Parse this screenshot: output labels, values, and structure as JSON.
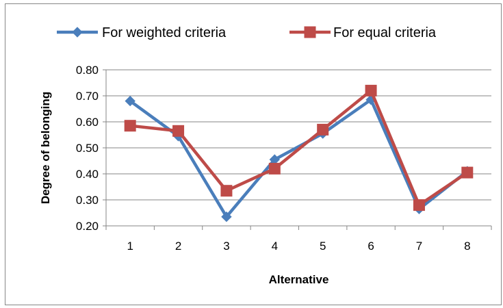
{
  "chart_data": {
    "type": "line",
    "title": "",
    "xlabel": "Alternative",
    "ylabel": "Degree of belonging",
    "categories": [
      "1",
      "2",
      "3",
      "4",
      "5",
      "6",
      "7",
      "8"
    ],
    "ylim": [
      0.2,
      0.8
    ],
    "yticks": [
      "0.20",
      "0.30",
      "0.40",
      "0.50",
      "0.60",
      "0.70",
      "0.80"
    ],
    "grid": true,
    "legend_position": "top",
    "series": [
      {
        "name": "For weighted criteria",
        "color": "#4A7EBB",
        "marker": "diamond",
        "values": [
          0.68,
          0.545,
          0.235,
          0.455,
          0.555,
          0.685,
          0.265,
          0.41
        ]
      },
      {
        "name": "For equal criteria",
        "color": "#BE4B48",
        "marker": "square",
        "values": [
          0.585,
          0.565,
          0.335,
          0.42,
          0.57,
          0.72,
          0.28,
          0.405
        ]
      }
    ]
  }
}
